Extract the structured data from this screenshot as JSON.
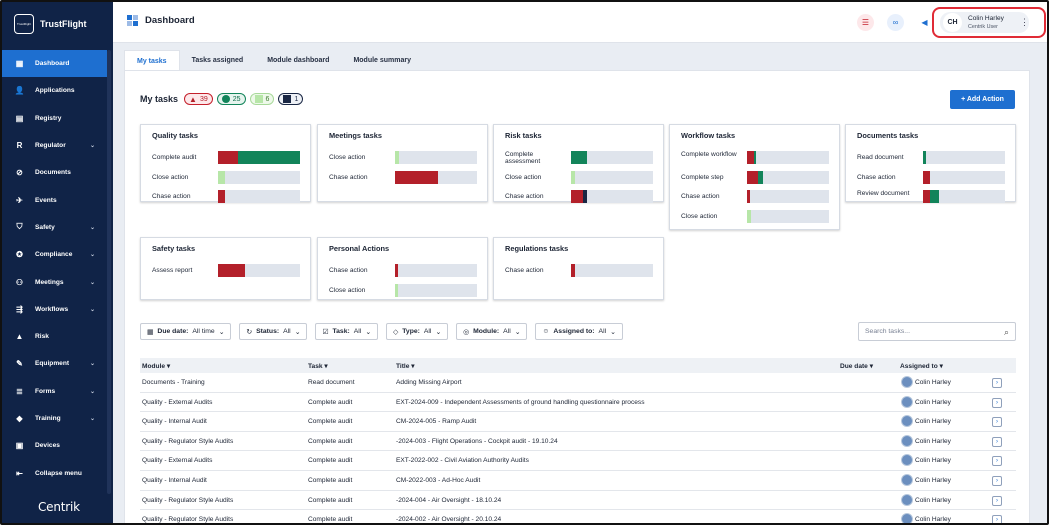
{
  "app": {
    "brand": "TrustFlight",
    "logo_badge": "TrustFlight",
    "footer_brand": "Centrik"
  },
  "sidebar": {
    "items": [
      {
        "label": "Dashboard",
        "icon": "grid-icon",
        "active": true,
        "chevron": false
      },
      {
        "label": "Applications",
        "icon": "user-icon",
        "active": false,
        "chevron": false
      },
      {
        "label": "Registry",
        "icon": "book-icon",
        "active": false,
        "chevron": false
      },
      {
        "label": "Regulator",
        "icon": "r-letter-icon",
        "active": false,
        "chevron": true
      },
      {
        "label": "Documents",
        "icon": "paperclip-icon",
        "active": false,
        "chevron": false
      },
      {
        "label": "Events",
        "icon": "plane-icon",
        "active": false,
        "chevron": false
      },
      {
        "label": "Safety",
        "icon": "shield-icon",
        "active": false,
        "chevron": true
      },
      {
        "label": "Compliance",
        "icon": "badge-icon",
        "active": false,
        "chevron": true
      },
      {
        "label": "Meetings",
        "icon": "people-icon",
        "active": false,
        "chevron": true
      },
      {
        "label": "Workflows",
        "icon": "flow-icon",
        "active": false,
        "chevron": true
      },
      {
        "label": "Risk",
        "icon": "warning-icon",
        "active": false,
        "chevron": false
      },
      {
        "label": "Equipment",
        "icon": "wrench-icon",
        "active": false,
        "chevron": true
      },
      {
        "label": "Forms",
        "icon": "form-icon",
        "active": false,
        "chevron": true
      },
      {
        "label": "Training",
        "icon": "graduation-icon",
        "active": false,
        "chevron": true
      },
      {
        "label": "Devices",
        "icon": "devices-icon",
        "active": false,
        "chevron": false
      }
    ],
    "collapse_label": "Collapse menu"
  },
  "header": {
    "title": "Dashboard",
    "user": {
      "initials": "CH",
      "name": "Colin Harley",
      "role": "Centrik User"
    }
  },
  "tabs": [
    "My tasks",
    "Tasks assigned",
    "Module dashboard",
    "Module summary"
  ],
  "my_tasks": {
    "title": "My tasks",
    "counts": {
      "overdue": "39",
      "ok": "25",
      "upcoming": "6",
      "other": "1"
    },
    "add_action": "+ Add Action"
  },
  "cards": [
    {
      "title": "Quality tasks",
      "rows": [
        {
          "label": "Complete audit",
          "red": 0.24,
          "green": 0.76,
          "light": 0
        },
        {
          "label": "Close action",
          "red": 0,
          "green": 0,
          "light": 0.09
        },
        {
          "label": "Chase action",
          "red": 0.09,
          "green": 0,
          "light": 0
        }
      ]
    },
    {
      "title": "Meetings tasks",
      "rows": [
        {
          "label": "Close action",
          "red": 0,
          "green": 0,
          "light": 0.05
        },
        {
          "label": "Chase action",
          "red": 0.53,
          "green": 0,
          "light": 0
        }
      ]
    },
    {
      "title": "Risk tasks",
      "rows": [
        {
          "label": "Complete assessment",
          "red": 0,
          "green": 0.2,
          "light": 0
        },
        {
          "label": "Close action",
          "red": 0,
          "green": 0,
          "light": 0.05
        },
        {
          "label": "Chase action",
          "red": 0.15,
          "green": 0,
          "light": 0,
          "navy": 0.04
        }
      ]
    },
    {
      "title": "Workflow tasks",
      "rows": [
        {
          "label": "Complete workflow",
          "red": 0.08,
          "green": 0.03,
          "light": 0
        },
        {
          "label": "Complete step",
          "red": 0.14,
          "green": 0.05,
          "light": 0
        },
        {
          "label": "Chase action",
          "red": 0.04,
          "green": 0,
          "light": 0
        },
        {
          "label": "Close action",
          "red": 0,
          "green": 0,
          "light": 0.05
        }
      ]
    },
    {
      "title": "Documents tasks",
      "rows": [
        {
          "label": "Read document",
          "red": 0,
          "green": 0.04,
          "light": 0
        },
        {
          "label": "Chase action",
          "red": 0.09,
          "green": 0,
          "light": 0
        },
        {
          "label": "Review document",
          "red": 0.09,
          "green": 0.1,
          "light": 0
        }
      ]
    },
    {
      "title": "Safety tasks",
      "rows": [
        {
          "label": "Assess report",
          "red": 0.33,
          "green": 0,
          "light": 0
        }
      ]
    },
    {
      "title": "Personal Actions",
      "rows": [
        {
          "label": "Chase action",
          "red": 0.04,
          "green": 0,
          "light": 0
        },
        {
          "label": "Close action",
          "red": 0,
          "green": 0,
          "light": 0.04
        }
      ]
    },
    {
      "title": "Regulations tasks",
      "rows": [
        {
          "label": "Chase action",
          "red": 0.05,
          "green": 0,
          "light": 0
        }
      ]
    }
  ],
  "filters": [
    {
      "icon": "calendar-icon",
      "label": "Due date:",
      "value": "All time"
    },
    {
      "icon": "refresh-icon",
      "label": "Status:",
      "value": "All"
    },
    {
      "icon": "task-icon",
      "label": "Task:",
      "value": "All"
    },
    {
      "icon": "tag-icon",
      "label": "Type:",
      "value": "All"
    },
    {
      "icon": "module-icon",
      "label": "Module:",
      "value": "All"
    },
    {
      "icon": "user-circle-icon",
      "label": "Assigned to:",
      "value": "All"
    }
  ],
  "search": {
    "placeholder": "Search tasks..."
  },
  "table": {
    "columns": [
      "Module",
      "Task",
      "Title",
      "Due date",
      "Assigned to"
    ],
    "rows": [
      [
        "Documents - Training",
        "Read document",
        "Adding Missing Airport",
        "",
        "Colin Harley"
      ],
      [
        "Quality - External Audits",
        "Complete audit",
        "EXT-2024-009 - Independent Assessments of ground handling questionnaire process",
        "",
        "Colin Harley"
      ],
      [
        "Quality - Internal Audit",
        "Complete audit",
        "CM-2024-005 - Ramp Audit",
        "",
        "Colin Harley"
      ],
      [
        "Quality - Regulator Style Audits",
        "Complete audit",
        "-2024-003 - Flight Operations - Cockpit audit - 19.10.24",
        "",
        "Colin Harley"
      ],
      [
        "Quality - External Audits",
        "Complete audit",
        "EXT-2022-002 - Civil Aviation Authority Audits",
        "",
        "Colin Harley"
      ],
      [
        "Quality - Internal Audit",
        "Complete audit",
        "CM-2022-003 - Ad-Hoc Audit",
        "",
        "Colin Harley"
      ],
      [
        "Quality - Regulator Style Audits",
        "Complete audit",
        "-2024-004 - Air Oversight - 18.10.24",
        "",
        "Colin Harley"
      ],
      [
        "Quality - Regulator Style Audits",
        "Complete audit",
        "-2024-002 - Air Oversight - 20.10.24",
        "",
        "Colin Harley"
      ]
    ]
  },
  "colors": {
    "sidebar": "#102347",
    "accent": "#1e6fd0",
    "red": "#b3202a",
    "green": "#12845a",
    "light_green": "#b7e6a8",
    "navy": "#1a2744",
    "bar_bg": "#dfe4ec"
  }
}
